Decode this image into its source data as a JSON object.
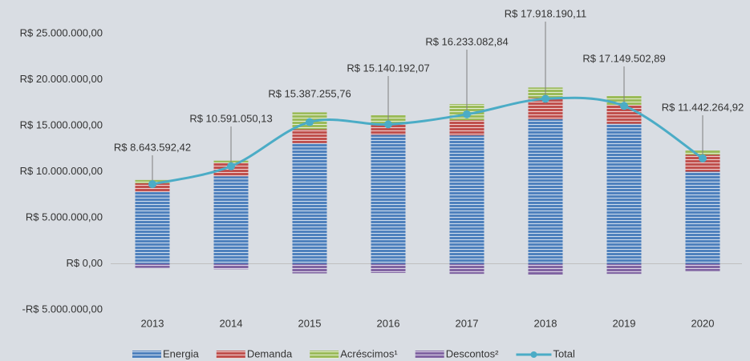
{
  "chart_data": {
    "type": "stacked-bar-line",
    "categories": [
      "2013",
      "2014",
      "2015",
      "2016",
      "2017",
      "2018",
      "2019",
      "2020"
    ],
    "series": [
      {
        "name": "Energia",
        "color": "#4f81bd",
        "values": [
          7800000,
          9500000,
          13100000,
          14000000,
          13950000,
          15700000,
          15200000,
          10000000
        ]
      },
      {
        "name": "Demanda",
        "color": "#c0504d",
        "values": [
          950000,
          1450000,
          1500000,
          1250000,
          1650000,
          2300000,
          2050000,
          1850000
        ]
      },
      {
        "name": "Acréscimos¹",
        "color": "#9bbb59",
        "values": [
          350000,
          250000,
          1850000,
          900000,
          1750000,
          1150000,
          1000000,
          450000
        ]
      },
      {
        "name": "Descontos²",
        "color": "#8064a2",
        "values": [
          -450000,
          -600000,
          -1050000,
          -1000000,
          -1100000,
          -1200000,
          -1100000,
          -800000
        ]
      },
      {
        "name": "Total",
        "color": "#4bacc6",
        "type": "line",
        "values": [
          8643592.42,
          10591050.13,
          15387255.76,
          15140192.07,
          16233082.84,
          17918190.11,
          17149502.89,
          11442264.92
        ],
        "value_labels": [
          "R$ 8.643.592,42",
          "R$ 10.591.050,13",
          "R$ 15.387.255,76",
          "R$ 15.140.192,07",
          "R$ 16.233.082,84",
          "R$ 17.918.190,11",
          "R$ 17.149.502,89",
          "R$ 11.442.264,92"
        ]
      }
    ],
    "ylim": [
      -6000000,
      26000000
    ],
    "yticks": [
      {
        "value": -5000000,
        "label": "-R$ 5.000.000,00"
      },
      {
        "value": 0,
        "label": "R$ 0,00"
      },
      {
        "value": 5000000,
        "label": "R$ 5.000.000,00"
      },
      {
        "value": 10000000,
        "label": "R$ 10.000.000,00"
      },
      {
        "value": 15000000,
        "label": "R$ 15.000.000,00"
      },
      {
        "value": 20000000,
        "label": "R$ 20.000.000,00"
      },
      {
        "value": 25000000,
        "label": "R$ 25.000.000,00"
      }
    ],
    "grid": false,
    "legend": "bottom"
  }
}
